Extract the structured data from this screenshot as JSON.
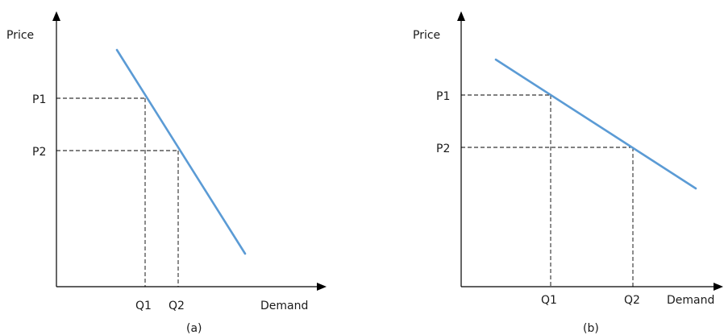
{
  "colors": {
    "demand_line": "#5B9BD5",
    "axis": "#000000",
    "guide": "#000000"
  },
  "panels": [
    {
      "caption": "(a)",
      "y_label": "Price",
      "x_label": "Demand",
      "p1_label": "P1",
      "p2_label": "P2",
      "q1_label": "Q1",
      "q2_label": "Q2"
    },
    {
      "caption": "(b)",
      "y_label": "Price",
      "x_label": "Demand",
      "p1_label": "P1",
      "p2_label": "P2",
      "q1_label": "Q1",
      "q2_label": "Q2"
    }
  ]
}
